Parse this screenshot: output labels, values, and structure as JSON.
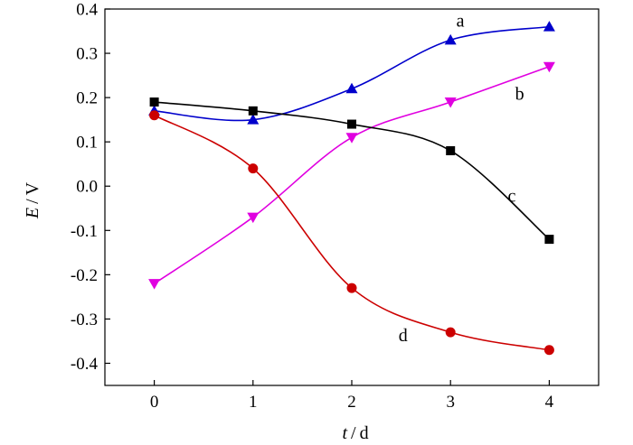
{
  "chart_data": {
    "type": "line",
    "title": "",
    "xlabel_var": "t",
    "xlabel_unit": "d",
    "ylabel_var": "E",
    "ylabel_unit": "V",
    "xlim": [
      -0.5,
      4.5
    ],
    "ylim": [
      -0.45,
      0.4
    ],
    "xticks": [
      0,
      1,
      2,
      3,
      4
    ],
    "xtick_labels": [
      "0",
      "1",
      "2",
      "3",
      "4"
    ],
    "yticks": [
      0.4,
      0.3,
      0.2,
      0.1,
      0.0,
      -0.1,
      -0.2,
      -0.3,
      -0.4
    ],
    "ytick_labels": [
      "0.4",
      "0.3",
      "0.2",
      "0.1",
      "0.0",
      "-0.1",
      "-0.2",
      "-0.3",
      "-0.4"
    ],
    "grid": false,
    "series": [
      {
        "name": "a",
        "color": "#0000cc",
        "marker": "triangle-up",
        "x": [
          0,
          1,
          2,
          3,
          4
        ],
        "y": [
          0.17,
          0.15,
          0.22,
          0.33,
          0.36
        ]
      },
      {
        "name": "b",
        "color": "#e000e0",
        "marker": "triangle-down",
        "x": [
          0,
          1,
          2,
          3,
          4
        ],
        "y": [
          -0.22,
          -0.07,
          0.11,
          0.19,
          0.27
        ]
      },
      {
        "name": "c",
        "color": "#000000",
        "marker": "square",
        "x": [
          0,
          1,
          2,
          3,
          4
        ],
        "y": [
          0.19,
          0.17,
          0.14,
          0.08,
          -0.12
        ]
      },
      {
        "name": "d",
        "color": "#cc0000",
        "marker": "circle",
        "x": [
          0,
          1,
          2,
          3,
          4
        ],
        "y": [
          0.16,
          0.04,
          -0.23,
          -0.33,
          -0.37
        ]
      }
    ]
  }
}
